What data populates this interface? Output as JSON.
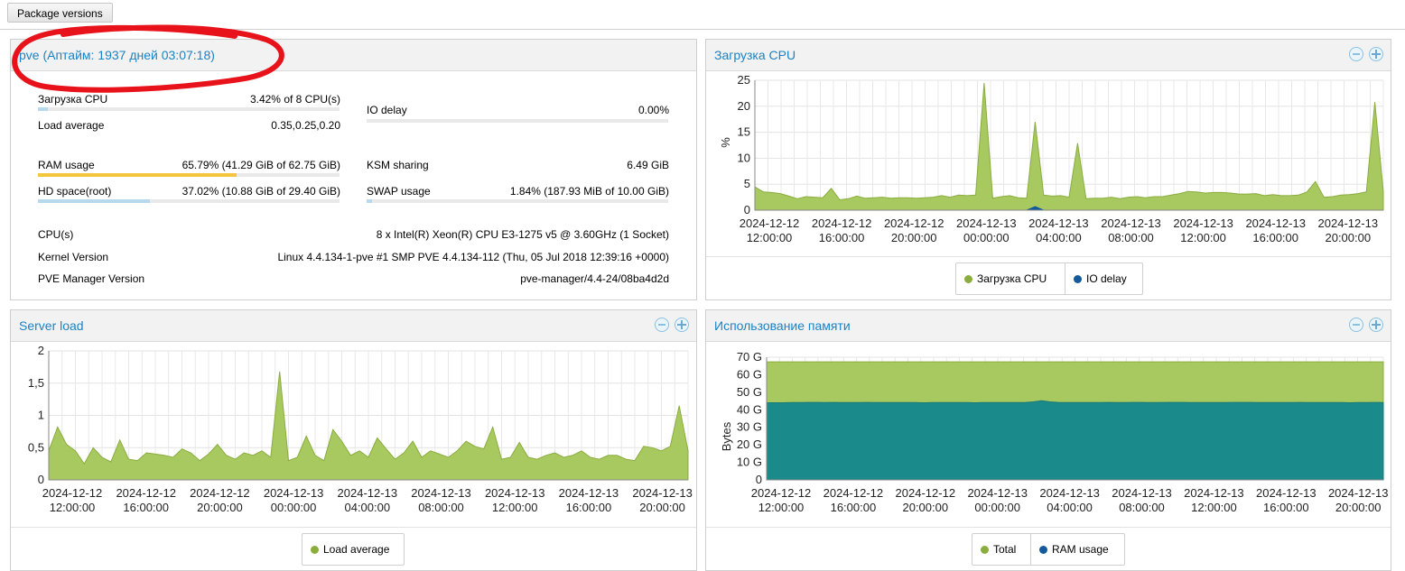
{
  "toolbar": {
    "package_versions": "Package versions"
  },
  "summary": {
    "title": "pve (Аптайм: 1937 дней 03:07:18)",
    "rows": {
      "cpu": {
        "label": "Загрузка CPU",
        "value": "3.42% of 8 CPU(s)",
        "fraction": 0.0342
      },
      "load": {
        "label": "Load average",
        "value": "0.35,0.25,0.20"
      },
      "iodelay": {
        "label": "IO delay",
        "value": "0.00%"
      },
      "ram": {
        "label": "RAM usage",
        "value": "65.79% (41.29 GiB of 62.75 GiB)",
        "fraction": 0.6579
      },
      "ksm": {
        "label": "KSM sharing",
        "value": "6.49 GiB"
      },
      "hd": {
        "label": "HD space(root)",
        "value": "37.02% (10.88 GiB of 29.40 GiB)",
        "fraction": 0.3702
      },
      "swap": {
        "label": "SWAP usage",
        "value": "1.84% (187.93 MiB of 10.00 GiB)",
        "fraction": 0.0184
      },
      "cpus": {
        "label": "CPU(s)",
        "value": "8 x Intel(R) Xeon(R) CPU E3-1275 v5 @ 3.60GHz (1 Socket)"
      },
      "kernel": {
        "label": "Kernel Version",
        "value": "Linux 4.4.134-1-pve #1 SMP PVE 4.4.134-112 (Thu, 05 Jul 2018 12:39:16 +0000)"
      },
      "pve": {
        "label": "PVE Manager Version",
        "value": "pve-manager/4.4-24/08ba4d2d"
      }
    }
  },
  "colors": {
    "green_fill": "#a8c860",
    "green_line": "#8aad3e",
    "teal": "#1a8a8a",
    "blue_dot": "#125a9c",
    "accent": "#1a83c4",
    "ram_bar": "#f3c63d",
    "bar_blue": "#b6d9ee"
  },
  "x_ticks": [
    [
      "2024-12-12",
      "12:00:00"
    ],
    [
      "2024-12-12",
      "16:00:00"
    ],
    [
      "2024-12-12",
      "20:00:00"
    ],
    [
      "2024-12-13",
      "00:00:00"
    ],
    [
      "2024-12-13",
      "04:00:00"
    ],
    [
      "2024-12-13",
      "08:00:00"
    ],
    [
      "2024-12-13",
      "12:00:00"
    ],
    [
      "2024-12-13",
      "16:00:00"
    ],
    [
      "2024-12-13",
      "20:00:00"
    ]
  ],
  "chart_data": [
    {
      "id": "cpu",
      "type": "area",
      "title": "Загрузка CPU",
      "ylabel": "%",
      "ylim": [
        0,
        25
      ],
      "yticks": [
        "0",
        "5",
        "10",
        "15",
        "20",
        "25"
      ],
      "grid": true,
      "legend": "bottom",
      "series": [
        {
          "name": "Загрузка CPU",
          "values": [
            4.5,
            3.5,
            3.4,
            3.2,
            2.7,
            2.2,
            2.6,
            2.5,
            2.4,
            4.2,
            2.0,
            2.2,
            2.7,
            2.3,
            2.4,
            2.5,
            2.3,
            2.4,
            2.4,
            2.3,
            2.4,
            2.5,
            2.8,
            2.5,
            2.9,
            2.8,
            2.9,
            24.5,
            2.3,
            2.6,
            2.8,
            2.4,
            2.3,
            17.0,
            2.9,
            2.7,
            2.8,
            2.5,
            12.9,
            2.2,
            2.3,
            2.3,
            2.5,
            2.2,
            2.5,
            2.6,
            2.4,
            2.6,
            2.6,
            2.9,
            3.2,
            3.6,
            3.5,
            3.3,
            3.4,
            3.4,
            3.3,
            3.1,
            3.1,
            3.2,
            2.8,
            3.0,
            2.8,
            2.8,
            2.9,
            3.5,
            5.5,
            2.5,
            2.6,
            2.9,
            3.0,
            3.2,
            3.5,
            20.8,
            3.5
          ]
        },
        {
          "name": "IO delay",
          "values": [
            0,
            0,
            0,
            0,
            0,
            0,
            0,
            0,
            0,
            0,
            0,
            0,
            0,
            0,
            0,
            0,
            0,
            0,
            0,
            0,
            0,
            0,
            0,
            0,
            0,
            0,
            0,
            0,
            0,
            0,
            0,
            0,
            0,
            0.7,
            0,
            0,
            0,
            0,
            0,
            0,
            0,
            0,
            0,
            0,
            0,
            0,
            0,
            0,
            0,
            0,
            0,
            0,
            0,
            0,
            0,
            0,
            0,
            0,
            0,
            0,
            0,
            0,
            0,
            0,
            0,
            0,
            0,
            0,
            0,
            0,
            0,
            0,
            0,
            0,
            0
          ]
        }
      ]
    },
    {
      "id": "load",
      "type": "area",
      "title": "Server load",
      "ylabel": "",
      "ylim": [
        0,
        2
      ],
      "yticks": [
        "0",
        "0,5",
        "1",
        "1,5",
        "2"
      ],
      "grid": true,
      "legend": "bottom",
      "series": [
        {
          "name": "Load average",
          "values": [
            0.45,
            0.82,
            0.55,
            0.45,
            0.25,
            0.5,
            0.35,
            0.28,
            0.62,
            0.32,
            0.3,
            0.42,
            0.4,
            0.38,
            0.35,
            0.48,
            0.42,
            0.3,
            0.4,
            0.55,
            0.38,
            0.32,
            0.42,
            0.38,
            0.45,
            0.35,
            1.68,
            0.3,
            0.35,
            0.68,
            0.38,
            0.3,
            0.78,
            0.6,
            0.38,
            0.45,
            0.35,
            0.65,
            0.48,
            0.32,
            0.42,
            0.6,
            0.35,
            0.45,
            0.4,
            0.35,
            0.45,
            0.6,
            0.52,
            0.48,
            0.82,
            0.32,
            0.35,
            0.58,
            0.35,
            0.32,
            0.38,
            0.42,
            0.35,
            0.38,
            0.45,
            0.35,
            0.32,
            0.38,
            0.38,
            0.32,
            0.3,
            0.52,
            0.5,
            0.45,
            0.52,
            1.15,
            0.45
          ]
        }
      ]
    },
    {
      "id": "mem",
      "type": "area",
      "title": "Использование памяти",
      "ylabel": "Bytes",
      "ylim": [
        0,
        70
      ],
      "yticks": [
        "0",
        "10 G",
        "20 G",
        "30 G",
        "40 G",
        "50 G",
        "60 G",
        "70 G"
      ],
      "grid": true,
      "legend": "bottom",
      "series": [
        {
          "name": "Total",
          "values": [
            67.4,
            67.4,
            67.4,
            67.4,
            67.4,
            67.4,
            67.4,
            67.4,
            67.4,
            67.4,
            67.4,
            67.4,
            67.4,
            67.4,
            67.4,
            67.4,
            67.4,
            67.4,
            67.4,
            67.4,
            67.4,
            67.4,
            67.4,
            67.4,
            67.4,
            67.4,
            67.4,
            67.4,
            67.4,
            67.4,
            67.4,
            67.4,
            67.4,
            67.4,
            67.4,
            67.4,
            67.4,
            67.4,
            67.4,
            67.4,
            67.4,
            67.4,
            67.4,
            67.4,
            67.4,
            67.4,
            67.4,
            67.4,
            67.4,
            67.4,
            67.4,
            67.4,
            67.4,
            67.4,
            67.4,
            67.4,
            67.4,
            67.4,
            67.4,
            67.4,
            67.4,
            67.4,
            67.4,
            67.4,
            67.4,
            67.4,
            67.4,
            67.4,
            67.4,
            67.4,
            67.4,
            67.4,
            67.4,
            67.4,
            67.4
          ]
        },
        {
          "name": "RAM usage",
          "values": [
            44.0,
            44.0,
            44.0,
            44.1,
            44.1,
            44.2,
            44.2,
            44.1,
            44.2,
            44.1,
            44.1,
            44.1,
            44.2,
            44.1,
            44.1,
            44.1,
            44.1,
            44.1,
            44.1,
            44.0,
            44.1,
            44.1,
            44.1,
            44.1,
            44.1,
            44.0,
            44.1,
            44.1,
            44.1,
            44.1,
            44.1,
            44.1,
            44.5,
            45.2,
            44.5,
            44.2,
            44.1,
            44.1,
            44.1,
            44.1,
            44.1,
            44.2,
            44.1,
            44.1,
            44.2,
            44.2,
            44.1,
            44.1,
            44.2,
            44.2,
            44.2,
            44.1,
            44.1,
            44.1,
            44.1,
            44.1,
            44.2,
            44.2,
            44.2,
            44.1,
            44.1,
            44.1,
            44.1,
            44.1,
            44.2,
            44.1,
            44.1,
            44.1,
            44.1,
            44.1,
            44.0,
            44.1,
            44.1,
            44.2,
            44.1
          ]
        }
      ]
    }
  ]
}
